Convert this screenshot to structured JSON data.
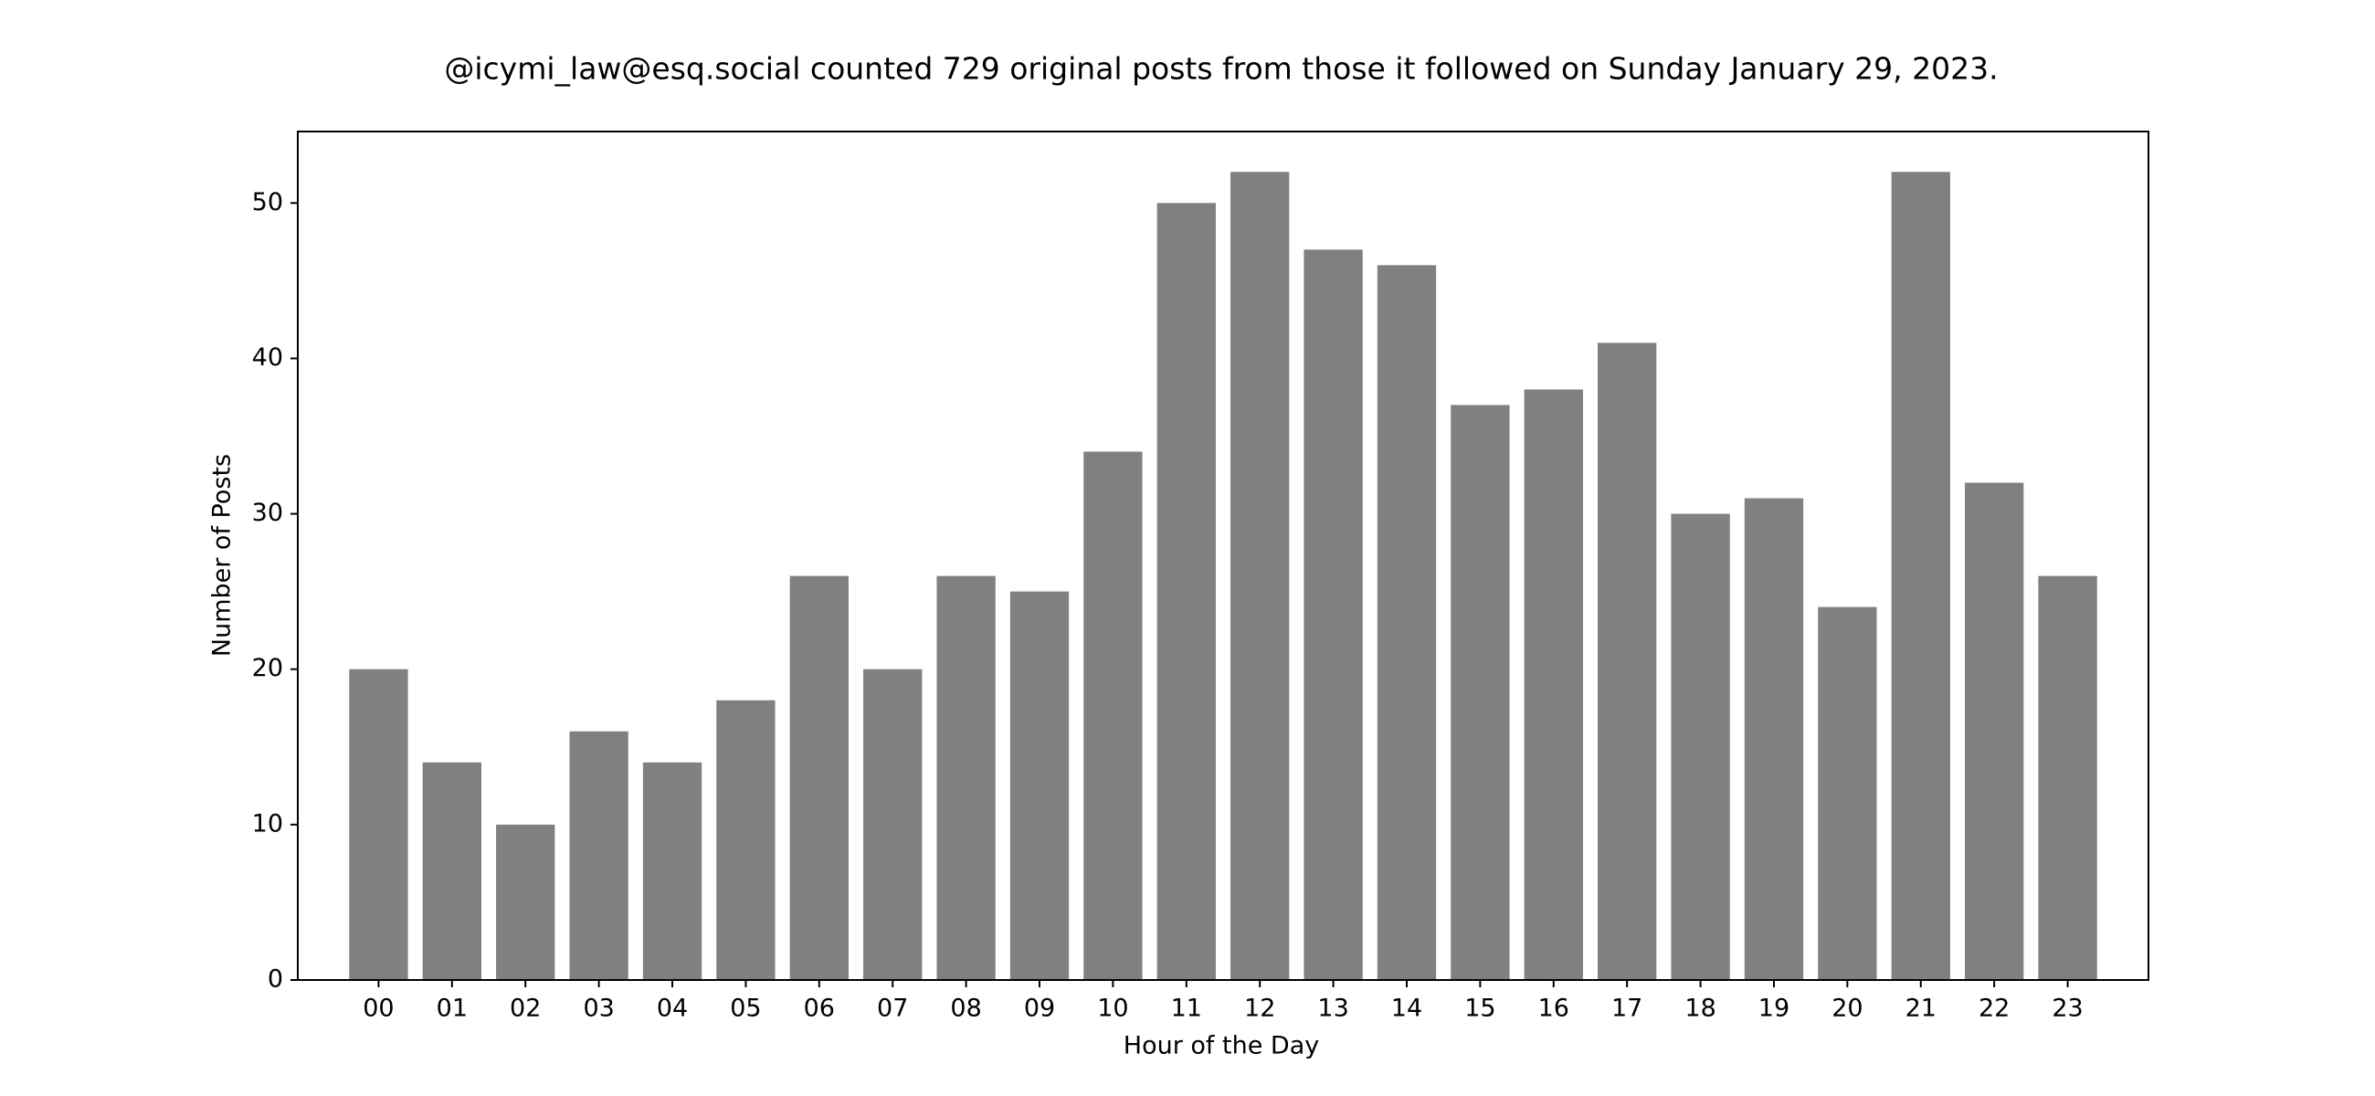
{
  "chart_data": {
    "type": "bar",
    "title": "@icymi_law@esq.social counted 729 original posts from those it followed on Sunday January 29, 2023.",
    "xlabel": "Hour of the Day",
    "ylabel": "Number of Posts",
    "categories": [
      "00",
      "01",
      "02",
      "03",
      "04",
      "05",
      "06",
      "07",
      "08",
      "09",
      "10",
      "11",
      "12",
      "13",
      "14",
      "15",
      "16",
      "17",
      "18",
      "19",
      "20",
      "21",
      "22",
      "23"
    ],
    "values": [
      20,
      14,
      10,
      16,
      14,
      18,
      26,
      20,
      26,
      25,
      34,
      50,
      52,
      47,
      46,
      37,
      38,
      41,
      30,
      31,
      24,
      52,
      32,
      26
    ],
    "ylim": [
      0,
      54.6
    ],
    "yticks": [
      0,
      10,
      20,
      30,
      40,
      50
    ],
    "grid": false,
    "bar_color": "#808080"
  }
}
